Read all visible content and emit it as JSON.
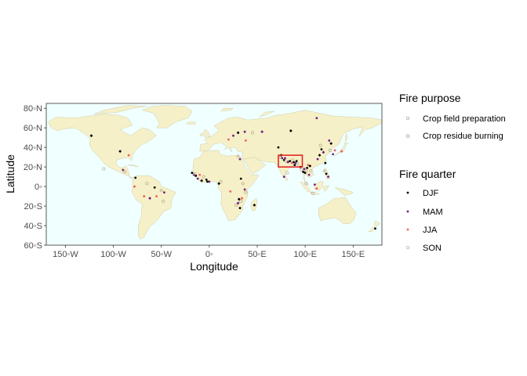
{
  "chart_data": {
    "type": "scatter",
    "map": "world",
    "xlabel": "Longitude",
    "ylabel": "Latitude",
    "xlim": [
      -170,
      180
    ],
    "ylim": [
      -60,
      85
    ],
    "x_ticks": [
      {
        "value": -150,
        "label": "150◦W"
      },
      {
        "value": -100,
        "label": "100◦W"
      },
      {
        "value": -50,
        "label": "50◦W"
      },
      {
        "value": 0,
        "label": "0◦"
      },
      {
        "value": 50,
        "label": "50◦E"
      },
      {
        "value": 100,
        "label": "100◦E"
      },
      {
        "value": 150,
        "label": "150◦E"
      }
    ],
    "y_ticks": [
      {
        "value": 80,
        "label": "80◦N"
      },
      {
        "value": 60,
        "label": "60◦N"
      },
      {
        "value": 40,
        "label": "40◦N"
      },
      {
        "value": 20,
        "label": "20◦N"
      },
      {
        "value": 0,
        "label": "0◦"
      },
      {
        "value": -20,
        "label": "20◦S"
      },
      {
        "value": -40,
        "label": "40◦S"
      },
      {
        "value": -60,
        "label": "60◦S"
      }
    ],
    "highlight_box": {
      "lon": [
        72,
        97
      ],
      "lat": [
        20,
        32
      ],
      "color": "#e41a1c"
    },
    "colors": {
      "ocean": "#f0ffff",
      "land": "#f5f0c8",
      "land_border": "#c9c39a"
    },
    "legend": {
      "fire_purpose": {
        "title": "Fire purpose",
        "items": [
          {
            "label": "Crop field preparation",
            "shape": "circle"
          },
          {
            "label": "Crop residue burning",
            "shape": "diamond"
          }
        ]
      },
      "fire_quarter": {
        "title": "Fire quarter",
        "items": [
          {
            "label": "DJF",
            "color": "#000004"
          },
          {
            "label": "MAM",
            "color": "#721f81"
          },
          {
            "label": "JJA",
            "color": "#f1605d"
          },
          {
            "label": "SON",
            "color": "#b7a98a"
          }
        ]
      }
    },
    "points": [
      {
        "lon": -123,
        "lat": 52,
        "q": "DJF",
        "p": "residue"
      },
      {
        "lon": -110,
        "lat": 18,
        "q": "SON",
        "p": "prep"
      },
      {
        "lon": -93,
        "lat": 36,
        "q": "DJF",
        "p": "residue"
      },
      {
        "lon": -90,
        "lat": 17,
        "q": "MAM",
        "p": "prep"
      },
      {
        "lon": -88,
        "lat": 15,
        "q": "SON",
        "p": "residue"
      },
      {
        "lon": -84,
        "lat": 32,
        "q": "JJA",
        "p": "prep"
      },
      {
        "lon": -77,
        "lat": 9,
        "q": "DJF",
        "p": "prep"
      },
      {
        "lon": -78,
        "lat": 0,
        "q": "JJA",
        "p": "residue"
      },
      {
        "lon": -65,
        "lat": 3,
        "q": "SON",
        "p": "prep"
      },
      {
        "lon": -68,
        "lat": -10,
        "q": "JJA",
        "p": "prep"
      },
      {
        "lon": -62,
        "lat": -12,
        "q": "MAM",
        "p": "residue"
      },
      {
        "lon": -57,
        "lat": -1,
        "q": "DJF",
        "p": "prep"
      },
      {
        "lon": -50,
        "lat": -4,
        "q": "SON",
        "p": "residue"
      },
      {
        "lon": -55,
        "lat": -10,
        "q": "JJA",
        "p": "prep"
      },
      {
        "lon": -48,
        "lat": -15,
        "q": "SON",
        "p": "prep"
      },
      {
        "lon": -47,
        "lat": -6,
        "q": "MAM",
        "p": "prep"
      },
      {
        "lon": -18,
        "lat": 14,
        "q": "DJF",
        "p": "prep"
      },
      {
        "lon": -16,
        "lat": 12,
        "q": "MAM",
        "p": "residue"
      },
      {
        "lon": -15,
        "lat": 13,
        "q": "SON",
        "p": "prep"
      },
      {
        "lon": -14,
        "lat": 11,
        "q": "DJF",
        "p": "prep"
      },
      {
        "lon": -12,
        "lat": 8,
        "q": "MAM",
        "p": "prep"
      },
      {
        "lon": -10,
        "lat": 12,
        "q": "JJA",
        "p": "prep"
      },
      {
        "lon": -8,
        "lat": 6,
        "q": "DJF",
        "p": "residue"
      },
      {
        "lon": -6,
        "lat": 10,
        "q": "SON",
        "p": "prep"
      },
      {
        "lon": -3,
        "lat": 7,
        "q": "DJF",
        "p": "prep"
      },
      {
        "lon": 0,
        "lat": 5,
        "q": "MAM",
        "p": "prep"
      },
      {
        "lon": -2,
        "lat": 5,
        "q": "DJF",
        "p": "prep"
      },
      {
        "lon": 10,
        "lat": 3,
        "q": "DJF",
        "p": "residue"
      },
      {
        "lon": 12,
        "lat": 5,
        "q": "SON",
        "p": "prep"
      },
      {
        "lon": 22,
        "lat": -5,
        "q": "JJA",
        "p": "prep"
      },
      {
        "lon": 30,
        "lat": 31,
        "q": "SON",
        "p": "residue"
      },
      {
        "lon": 32,
        "lat": 28,
        "q": "MAM",
        "p": "prep"
      },
      {
        "lon": 33,
        "lat": 8,
        "q": "DJF",
        "p": "prep"
      },
      {
        "lon": 35,
        "lat": 3,
        "q": "SON",
        "p": "residue"
      },
      {
        "lon": 37,
        "lat": -3,
        "q": "MAM",
        "p": "prep"
      },
      {
        "lon": 38,
        "lat": -6,
        "q": "SON",
        "p": "prep"
      },
      {
        "lon": 34,
        "lat": -12,
        "q": "JJA",
        "p": "residue"
      },
      {
        "lon": 31,
        "lat": -13,
        "q": "DJF",
        "p": "residue"
      },
      {
        "lon": 33,
        "lat": -15,
        "q": "SON",
        "p": "prep"
      },
      {
        "lon": 30,
        "lat": -17,
        "q": "MAM",
        "p": "residue"
      },
      {
        "lon": 28,
        "lat": -19,
        "q": "SON",
        "p": "prep"
      },
      {
        "lon": 32,
        "lat": -22,
        "q": "DJF",
        "p": "prep"
      },
      {
        "lon": 47,
        "lat": -19,
        "q": "DJF",
        "p": "residue"
      },
      {
        "lon": 25,
        "lat": 52,
        "q": "MAM",
        "p": "prep"
      },
      {
        "lon": 30,
        "lat": 55,
        "q": "DJF",
        "p": "residue"
      },
      {
        "lon": 37,
        "lat": 56,
        "q": "MAM",
        "p": "prep"
      },
      {
        "lon": 38,
        "lat": 47,
        "q": "JJA",
        "p": "prep"
      },
      {
        "lon": 45,
        "lat": 55,
        "q": "SON",
        "p": "prep"
      },
      {
        "lon": 55,
        "lat": 56,
        "q": "MAM",
        "p": "residue"
      },
      {
        "lon": 20,
        "lat": 48,
        "q": "JJA",
        "p": "prep"
      },
      {
        "lon": 74,
        "lat": 30,
        "q": "SON",
        "p": "residue"
      },
      {
        "lon": 76,
        "lat": 29,
        "q": "MAM",
        "p": "prep"
      },
      {
        "lon": 78,
        "lat": 27,
        "q": "DJF",
        "p": "prep"
      },
      {
        "lon": 80,
        "lat": 26,
        "q": "SON",
        "p": "prep"
      },
      {
        "lon": 82,
        "lat": 25,
        "q": "MAM",
        "p": "residue"
      },
      {
        "lon": 84,
        "lat": 26,
        "q": "DJF",
        "p": "prep"
      },
      {
        "lon": 86,
        "lat": 24,
        "q": "JJA",
        "p": "prep"
      },
      {
        "lon": 88,
        "lat": 25,
        "q": "DJF",
        "p": "residue"
      },
      {
        "lon": 90,
        "lat": 24,
        "q": "MAM",
        "p": "prep"
      },
      {
        "lon": 91,
        "lat": 26,
        "q": "DJF",
        "p": "prep"
      },
      {
        "lon": 92,
        "lat": 23,
        "q": "SON",
        "p": "residue"
      },
      {
        "lon": 89,
        "lat": 22,
        "q": "DJF",
        "p": "prep"
      },
      {
        "lon": 87,
        "lat": 27,
        "q": "SON",
        "p": "prep"
      },
      {
        "lon": 79,
        "lat": 29,
        "q": "MAM",
        "p": "prep"
      },
      {
        "lon": 75,
        "lat": 32,
        "q": "DJF",
        "p": "residue"
      },
      {
        "lon": 81,
        "lat": 14,
        "q": "SON",
        "p": "prep"
      },
      {
        "lon": 78,
        "lat": 10,
        "q": "MAM",
        "p": "prep"
      },
      {
        "lon": 72,
        "lat": 40,
        "q": "DJF",
        "p": "prep"
      },
      {
        "lon": 85,
        "lat": 57,
        "q": "DJF",
        "p": "residue"
      },
      {
        "lon": 95,
        "lat": 20,
        "q": "DJF",
        "p": "prep"
      },
      {
        "lon": 96,
        "lat": 17,
        "q": "SON",
        "p": "prep"
      },
      {
        "lon": 98,
        "lat": 15,
        "q": "DJF",
        "p": "residue"
      },
      {
        "lon": 99,
        "lat": 18,
        "q": "MAM",
        "p": "prep"
      },
      {
        "lon": 100,
        "lat": 14,
        "q": "DJF",
        "p": "prep"
      },
      {
        "lon": 101,
        "lat": 16,
        "q": "SON",
        "p": "residue"
      },
      {
        "lon": 102,
        "lat": 19,
        "q": "DJF",
        "p": "prep"
      },
      {
        "lon": 104,
        "lat": 12,
        "q": "MAM",
        "p": "prep"
      },
      {
        "lon": 105,
        "lat": 21,
        "q": "DJF",
        "p": "residue"
      },
      {
        "lon": 106,
        "lat": 16,
        "q": "SON",
        "p": "prep"
      },
      {
        "lon": 103,
        "lat": 22,
        "q": "JJA",
        "p": "prep"
      },
      {
        "lon": 101,
        "lat": 3,
        "q": "SON",
        "p": "prep"
      },
      {
        "lon": 110,
        "lat": 2,
        "q": "MAM",
        "p": "prep"
      },
      {
        "lon": 112,
        "lat": -2,
        "q": "JJA",
        "p": "residue"
      },
      {
        "lon": 108,
        "lat": -7,
        "q": "SON",
        "p": "prep"
      },
      {
        "lon": 115,
        "lat": 32,
        "q": "DJF",
        "p": "residue"
      },
      {
        "lon": 113,
        "lat": 28,
        "q": "MAM",
        "p": "prep"
      },
      {
        "lon": 117,
        "lat": 38,
        "q": "DJF",
        "p": "prep"
      },
      {
        "lon": 116,
        "lat": 42,
        "q": "SON",
        "p": "prep"
      },
      {
        "lon": 119,
        "lat": 35,
        "q": "MAM",
        "p": "residue"
      },
      {
        "lon": 121,
        "lat": 24,
        "q": "DJF",
        "p": "prep"
      },
      {
        "lon": 122,
        "lat": 13,
        "q": "DJF",
        "p": "prep"
      },
      {
        "lon": 120,
        "lat": 16,
        "q": "SON",
        "p": "residue"
      },
      {
        "lon": 124,
        "lat": 10,
        "q": "MAM",
        "p": "prep"
      },
      {
        "lon": 125,
        "lat": 47,
        "q": "MAM",
        "p": "prep"
      },
      {
        "lon": 127,
        "lat": 44,
        "q": "DJF",
        "p": "residue"
      },
      {
        "lon": 126,
        "lat": 37,
        "q": "SON",
        "p": "prep"
      },
      {
        "lon": 129,
        "lat": 33,
        "q": "MAM",
        "p": "prep"
      },
      {
        "lon": 131,
        "lat": 37,
        "q": "JJA",
        "p": "prep"
      },
      {
        "lon": 112,
        "lat": 70,
        "q": "MAM",
        "p": "prep"
      },
      {
        "lon": 138,
        "lat": 36,
        "q": "JJA",
        "p": "residue"
      },
      {
        "lon": 173,
        "lat": -43,
        "q": "DJF",
        "p": "prep"
      }
    ]
  }
}
